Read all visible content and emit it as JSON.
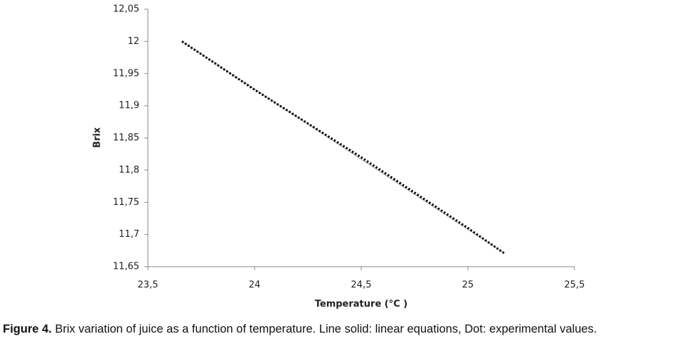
{
  "chart_data": {
    "type": "line",
    "x_label": "Temperature (°C )",
    "y_label": "Brix",
    "xlim": [
      23.5,
      25.5
    ],
    "xticks": [
      {
        "value": 23.5,
        "label": "23,5"
      },
      24,
      {
        "value": 24.5,
        "label": "24,5"
      },
      25,
      {
        "value": 25.5,
        "label": "25,5"
      }
    ],
    "ylim": [
      11.65,
      12.05
    ],
    "yticks": [
      {
        "value": 11.65,
        "label": "11,65"
      },
      {
        "value": 11.7,
        "label": "11,7"
      },
      {
        "value": 11.75,
        "label": "11,75"
      },
      {
        "value": 11.8,
        "label": "11,8"
      },
      {
        "value": 11.85,
        "label": "11,85"
      },
      {
        "value": 11.9,
        "label": "11,9"
      },
      {
        "value": 11.95,
        "label": "11,95"
      },
      12,
      {
        "value": 12.05,
        "label": "12,05"
      }
    ],
    "series": [
      {
        "color": "#999999",
        "style": "solid",
        "x": [
          23.66,
          25.17
        ],
        "values": [
          12.0,
          11.671
        ]
      },
      {
        "color": "#000000",
        "style": "dotted",
        "x": [
          23.66,
          24.0,
          24.5,
          25.0,
          25.17
        ],
        "values": [
          12.0,
          11.925,
          11.82,
          11.71,
          11.671
        ]
      }
    ]
  },
  "caption": {
    "label": "Figure 4.",
    "text": " Brix variation of juice as a function of temperature. Line solid: linear equations, Dot: experimental values."
  }
}
